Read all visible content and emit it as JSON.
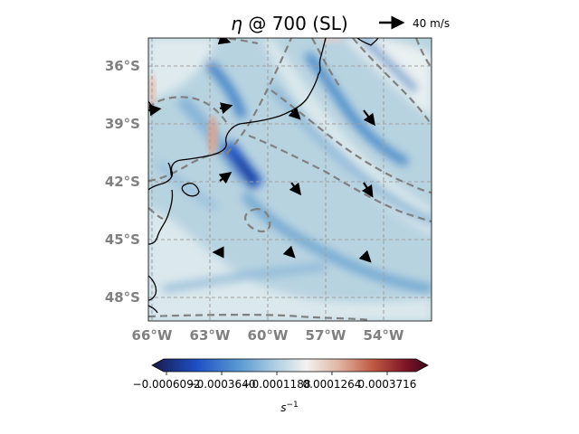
{
  "title": "η @ 700 (SL)",
  "title_symbol": "η",
  "title_rest": " @ 700 (SL)",
  "quiver_key": {
    "label": "40 m/s"
  },
  "lat_ticks": [
    "36°S",
    "39°S",
    "42°S",
    "45°S",
    "48°S"
  ],
  "lon_ticks": [
    "66°W",
    "63°W",
    "60°W",
    "57°W",
    "54°W"
  ],
  "colorbar": {
    "ticks": [
      "−0.0006092",
      "−0.0003640",
      "−0.0001188",
      "0.0001264",
      "0.0003716"
    ],
    "unit_base": "s",
    "unit_exp": "−1",
    "colormap": [
      "#1a1a4a",
      "#1d4fc4",
      "#5b9bd3",
      "#b6d3e3",
      "#f2f2ef",
      "#e0b3a0",
      "#bf5a43",
      "#7e1426",
      "#3a0a1a"
    ]
  },
  "colors": {
    "background_field": "#b8d3e0",
    "coastline": "#000000",
    "contour": "#808080",
    "gridline": "#a0a0a0",
    "tick_label": "#808080"
  }
}
